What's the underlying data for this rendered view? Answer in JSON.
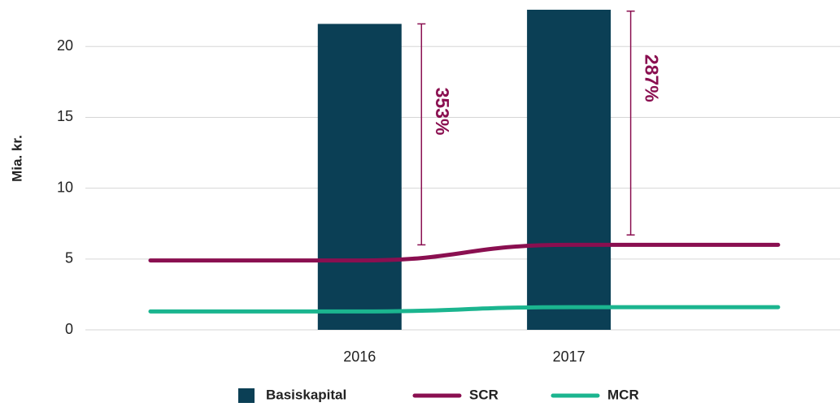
{
  "chart_data": {
    "type": "bar_line",
    "y_label": "Mia. kr.",
    "categories": [
      null,
      "2016",
      "2017",
      null
    ],
    "series": [
      {
        "name": "Basiskapital",
        "type": "bar",
        "color": "#0b3f55",
        "values": [
          null,
          21.6,
          22.6,
          null
        ]
      },
      {
        "name": "SCR",
        "type": "line",
        "color": "#8a0f50",
        "values": [
          4.9,
          4.9,
          6.0,
          6.0
        ]
      },
      {
        "name": "MCR",
        "type": "line",
        "color": "#1bb58f",
        "values": [
          1.3,
          1.3,
          1.6,
          1.6
        ]
      }
    ],
    "annotations": [
      {
        "text": "353%",
        "x": "2016",
        "y_start": 6.0,
        "y_end": 21.6,
        "color": "#8a0f50"
      },
      {
        "text": "287%",
        "x": "2017",
        "y_start": 6.7,
        "y_end": 22.5,
        "color": "#8a0f50"
      }
    ],
    "ylim": [
      0,
      23
    ],
    "yticks": [
      0,
      5,
      10,
      15,
      20
    ],
    "grid": true,
    "legend": "bottom"
  }
}
